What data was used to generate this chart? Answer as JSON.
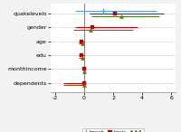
{
  "variables": [
    "quakelevels",
    "gender",
    "age",
    "edu",
    "monthincome",
    "dependents"
  ],
  "y_positions": [
    5,
    4,
    3,
    2,
    1,
    0
  ],
  "models": [
    "bench",
    "basic",
    "full"
  ],
  "colors": [
    "#5B9BD5",
    "#C00000",
    "#4F7728"
  ],
  "markers": [
    "D",
    "s",
    "^"
  ],
  "marker_sizes": [
    3.5,
    3.0,
    3.0
  ],
  "row_offsets": [
    0.18,
    0.0,
    -0.18
  ],
  "data": {
    "bench": {
      "centers": [
        1.3,
        null,
        null,
        null,
        null,
        null
      ],
      "lows": [
        -0.6,
        null,
        null,
        null,
        null,
        null
      ],
      "highs": [
        5.0,
        null,
        null,
        null,
        null,
        null
      ]
    },
    "basic": {
      "centers": [
        2.1,
        0.55,
        -0.18,
        -0.18,
        0.01,
        0.01
      ],
      "lows": [
        0.4,
        -0.6,
        -0.38,
        -0.38,
        -0.04,
        -1.45
      ],
      "highs": [
        5.5,
        3.7,
        -0.02,
        -0.02,
        0.06,
        0.06
      ]
    },
    "full": {
      "centers": [
        2.55,
        0.42,
        -0.15,
        -0.15,
        0.01,
        0.01
      ],
      "lows": [
        0.5,
        -0.75,
        -0.35,
        -0.35,
        -0.03,
        -1.45
      ],
      "highs": [
        5.2,
        3.4,
        -0.01,
        -0.01,
        0.05,
        0.05
      ]
    }
  },
  "xlim": [
    -2.3,
    6.3
  ],
  "xticks": [
    -2,
    0,
    2,
    4,
    6
  ],
  "xticklabels": [
    "-2",
    "0",
    "2",
    "4",
    "6"
  ],
  "ylim": [
    -0.7,
    5.7
  ],
  "vline_x": 0,
  "vline_color": "#E06060",
  "background_color": "#F2F2F2",
  "plot_bg_color": "#FFFFFF",
  "grid_color": "#D8D8D8",
  "figsize": [
    2.0,
    1.46
  ],
  "dpi": 100,
  "legend_labels": [
    "bench",
    "basic",
    "full"
  ]
}
